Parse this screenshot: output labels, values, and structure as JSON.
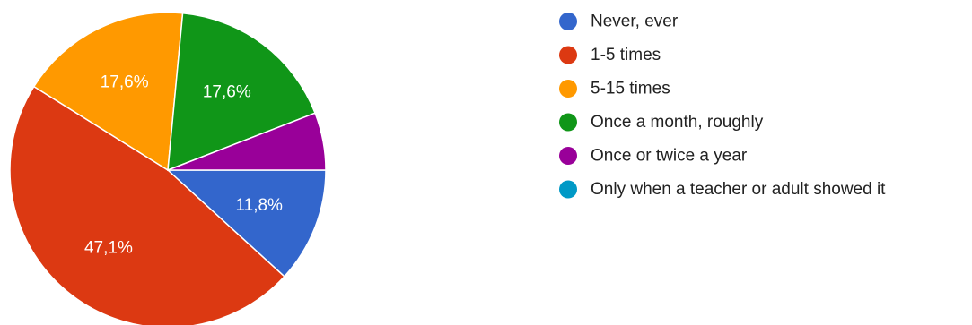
{
  "chart_data": {
    "type": "pie",
    "slices": [
      {
        "label": "Never, ever",
        "value": 11.8,
        "display": "11,8%",
        "color": "#3366cc"
      },
      {
        "label": "1-5 times",
        "value": 47.1,
        "display": "47,1%",
        "color": "#dc3912"
      },
      {
        "label": "5-15 times",
        "value": 17.6,
        "display": "17,6%",
        "color": "#ff9900"
      },
      {
        "label": "Once a month, roughly",
        "value": 17.6,
        "display": "17,6%",
        "color": "#109618"
      },
      {
        "label": "Once or twice a year",
        "value": 5.9,
        "display": "",
        "color": "#990099"
      },
      {
        "label": "Only when a teacher or adult showed it",
        "value": 0,
        "display": "",
        "color": "#0099c6"
      }
    ],
    "legend_position": "right"
  }
}
